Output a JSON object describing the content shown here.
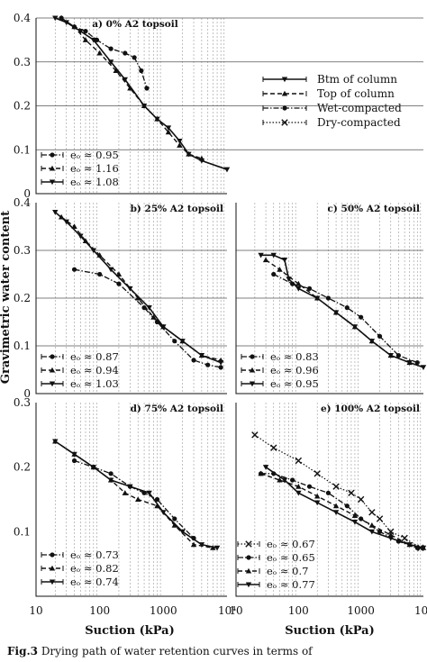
{
  "figure": {
    "ylabel": "Gravimetric water content",
    "xlabel": "Suction (kPa)",
    "xticks": [
      "10",
      "100",
      "1000",
      "10⁴"
    ],
    "caption_label": "Fig.3",
    "caption_text": " Drying path of water retention curves in terms of"
  },
  "legend": {
    "entries": [
      {
        "label": "Btm of column",
        "style": "solid",
        "marker": "tri-down"
      },
      {
        "label": "Top of column",
        "style": "dashed",
        "marker": "tri-up"
      },
      {
        "label": "Wet-compacted",
        "style": "dotdash",
        "marker": "circle"
      },
      {
        "label": "Dry-compacted",
        "style": "dotted",
        "marker": "x"
      }
    ]
  },
  "chart_data": [
    {
      "id": "a",
      "type": "line",
      "title": "a) 0% A2 topsoil",
      "xscale": "log",
      "xlim": [
        10,
        10000
      ],
      "ylim": [
        0,
        0.4
      ],
      "yticks": [
        "0",
        "0.1",
        "0.2",
        "0.3",
        "0.4"
      ],
      "hlines": [
        0.1,
        0.2,
        0.3,
        0.4
      ],
      "series": [
        {
          "style": "dotdash",
          "marker": "circle",
          "x": [
            25,
            40,
            60,
            90,
            150,
            250,
            350,
            450,
            550
          ],
          "y": [
            0.4,
            0.38,
            0.37,
            0.35,
            0.33,
            0.32,
            0.31,
            0.28,
            0.24
          ]
        },
        {
          "style": "dashed",
          "marker": "tri-up",
          "x": [
            25,
            40,
            60,
            100,
            180,
            300,
            500,
            800,
            1200,
            1800,
            2500,
            4000
          ],
          "y": [
            0.4,
            0.38,
            0.35,
            0.32,
            0.28,
            0.24,
            0.2,
            0.17,
            0.14,
            0.11,
            0.09,
            0.08
          ]
        },
        {
          "style": "solid",
          "marker": "tri-down",
          "x": [
            20,
            30,
            50,
            80,
            150,
            250,
            500,
            800,
            1200,
            1800,
            2500,
            4000,
            10000
          ],
          "y": [
            0.4,
            0.39,
            0.37,
            0.35,
            0.3,
            0.26,
            0.2,
            0.17,
            0.15,
            0.12,
            0.09,
            0.075,
            0.055
          ]
        }
      ],
      "legend": [
        {
          "style": "dotdash",
          "marker": "circle",
          "label": "eₒ ≈ 0.95"
        },
        {
          "style": "dashed",
          "marker": "tri-up",
          "label": "eₒ ≈ 1.16"
        },
        {
          "style": "solid",
          "marker": "tri-down",
          "label": "eₒ ≈ 1.08"
        }
      ]
    },
    {
      "id": "b",
      "type": "line",
      "title": "b) 25% A2 topsoil",
      "xscale": "log",
      "xlim": [
        10,
        10000
      ],
      "ylim": [
        0,
        0.4
      ],
      "yticks": [
        "0",
        "0.1",
        "0.2",
        "0.3",
        "0.4"
      ],
      "hlines": [
        0.1,
        0.2,
        0.3
      ],
      "series": [
        {
          "style": "dotdash",
          "marker": "circle",
          "x": [
            40,
            100,
            200,
            500,
            800,
            1500,
            3000,
            5000,
            8000
          ],
          "y": [
            0.26,
            0.25,
            0.23,
            0.18,
            0.15,
            0.11,
            0.07,
            0.06,
            0.055
          ]
        },
        {
          "style": "dashed",
          "marker": "tri-up",
          "x": [
            25,
            40,
            60,
            100,
            200,
            400,
            700,
            1000,
            2000,
            4000,
            8000
          ],
          "y": [
            0.37,
            0.35,
            0.32,
            0.29,
            0.25,
            0.2,
            0.16,
            0.14,
            0.11,
            0.08,
            0.07
          ]
        },
        {
          "style": "solid",
          "marker": "tri-down",
          "x": [
            20,
            30,
            50,
            80,
            150,
            300,
            600,
            1000,
            2000,
            4000,
            8000
          ],
          "y": [
            0.38,
            0.36,
            0.33,
            0.3,
            0.26,
            0.22,
            0.18,
            0.14,
            0.11,
            0.08,
            0.065
          ]
        }
      ],
      "legend": [
        {
          "style": "dotdash",
          "marker": "circle",
          "label": "eₒ ≈ 0.87"
        },
        {
          "style": "dashed",
          "marker": "tri-up",
          "label": "eₒ ≈ 0.94"
        },
        {
          "style": "solid",
          "marker": "tri-down",
          "label": "eₒ ≈ 1.03"
        }
      ]
    },
    {
      "id": "c",
      "type": "line",
      "title": "c) 50% A2 topsoil",
      "xscale": "log",
      "xlim": [
        10,
        10000
      ],
      "ylim": [
        0,
        0.4
      ],
      "yticks": [],
      "hlines": [
        0.1,
        0.2,
        0.3
      ],
      "series": [
        {
          "style": "dotdash",
          "marker": "circle",
          "x": [
            40,
            80,
            150,
            300,
            600,
            1000,
            2000,
            4000,
            8000
          ],
          "y": [
            0.25,
            0.23,
            0.22,
            0.2,
            0.18,
            0.16,
            0.12,
            0.08,
            0.065
          ]
        },
        {
          "style": "dashed",
          "marker": "tri-up",
          "x": [
            30,
            50,
            100,
            200,
            400,
            800,
            1500,
            3000,
            6000
          ],
          "y": [
            0.28,
            0.26,
            0.23,
            0.2,
            0.17,
            0.14,
            0.11,
            0.08,
            0.065
          ]
        },
        {
          "style": "solid",
          "marker": "tri-down",
          "x": [
            25,
            40,
            60,
            70,
            100,
            200,
            400,
            800,
            1500,
            3000,
            6000,
            10000
          ],
          "y": [
            0.29,
            0.29,
            0.28,
            0.24,
            0.22,
            0.2,
            0.17,
            0.14,
            0.11,
            0.08,
            0.065,
            0.055
          ]
        }
      ],
      "legend": [
        {
          "style": "dotdash",
          "marker": "circle",
          "label": "eₒ ≈ 0.83"
        },
        {
          "style": "dashed",
          "marker": "tri-up",
          "label": "eₒ ≈ 0.96"
        },
        {
          "style": "solid",
          "marker": "tri-down",
          "label": "eₒ ≈ 0.95"
        }
      ]
    },
    {
      "id": "d",
      "type": "line",
      "title": "d) 75% A2 topsoil",
      "xscale": "log",
      "xlim": [
        10,
        10000
      ],
      "ylim": [
        0,
        0.3
      ],
      "yticks": [
        "0.1",
        "0.2",
        "0.3"
      ],
      "hlines": [],
      "series": [
        {
          "style": "dotdash",
          "marker": "circle",
          "x": [
            40,
            80,
            150,
            300,
            500,
            800,
            1500,
            3000
          ],
          "y": [
            0.21,
            0.2,
            0.19,
            0.17,
            0.16,
            0.15,
            0.12,
            0.09
          ]
        },
        {
          "style": "dashed",
          "marker": "tri-up",
          "x": [
            20,
            40,
            80,
            150,
            250,
            400,
            800,
            1500,
            3000,
            6000
          ],
          "y": [
            0.24,
            0.22,
            0.2,
            0.18,
            0.16,
            0.15,
            0.14,
            0.11,
            0.08,
            0.075
          ]
        },
        {
          "style": "solid",
          "marker": "tri-down",
          "x": [
            20,
            40,
            80,
            150,
            300,
            600,
            1000,
            2000,
            4000,
            7000
          ],
          "y": [
            0.24,
            0.22,
            0.2,
            0.18,
            0.17,
            0.16,
            0.13,
            0.1,
            0.08,
            0.075
          ]
        }
      ],
      "legend": [
        {
          "style": "dotdash",
          "marker": "circle",
          "label": "eₒ ≈ 0.73"
        },
        {
          "style": "dashed",
          "marker": "tri-up",
          "label": "eₒ ≈ 0.82"
        },
        {
          "style": "solid",
          "marker": "tri-down",
          "label": "eₒ ≈ 0.74"
        }
      ]
    },
    {
      "id": "e",
      "type": "line",
      "title": "e) 100% A2 topsoil",
      "xscale": "log",
      "xlim": [
        10,
        10000
      ],
      "ylim": [
        0,
        0.3
      ],
      "yticks": [],
      "hlines": [],
      "series": [
        {
          "style": "dotted",
          "marker": "x",
          "x": [
            20,
            40,
            100,
            200,
            400,
            700,
            1000,
            1500,
            2000,
            3000,
            5000,
            9000
          ],
          "y": [
            0.25,
            0.23,
            0.21,
            0.19,
            0.17,
            0.16,
            0.15,
            0.13,
            0.12,
            0.1,
            0.09,
            0.075
          ]
        },
        {
          "style": "dotdash",
          "marker": "circle",
          "x": [
            25,
            40,
            80,
            150,
            300,
            600,
            1000,
            2000,
            4000,
            8000
          ],
          "y": [
            0.19,
            0.19,
            0.18,
            0.17,
            0.16,
            0.14,
            0.12,
            0.1,
            0.085,
            0.075
          ]
        },
        {
          "style": "dashed",
          "marker": "tri-up",
          "x": [
            25,
            50,
            100,
            200,
            400,
            800,
            1500,
            3000,
            6000,
            10000
          ],
          "y": [
            0.19,
            0.18,
            0.17,
            0.155,
            0.14,
            0.125,
            0.11,
            0.095,
            0.08,
            0.075
          ]
        },
        {
          "style": "solid",
          "marker": "tri-down",
          "x": [
            30,
            60,
            100,
            200,
            400,
            800,
            1500,
            3000,
            6000,
            10000
          ],
          "y": [
            0.2,
            0.18,
            0.16,
            0.145,
            0.13,
            0.115,
            0.1,
            0.09,
            0.08,
            0.075
          ]
        }
      ],
      "legend": [
        {
          "style": "dotted",
          "marker": "x",
          "label": "eₒ ≈ 0.67"
        },
        {
          "style": "dotdash",
          "marker": "circle",
          "label": "eₒ ≈ 0.65"
        },
        {
          "style": "dashed",
          "marker": "tri-up",
          "label": "eₒ ≈ 0.7"
        },
        {
          "style": "solid",
          "marker": "tri-down",
          "label": "eₒ ≈ 0.77"
        }
      ]
    }
  ]
}
